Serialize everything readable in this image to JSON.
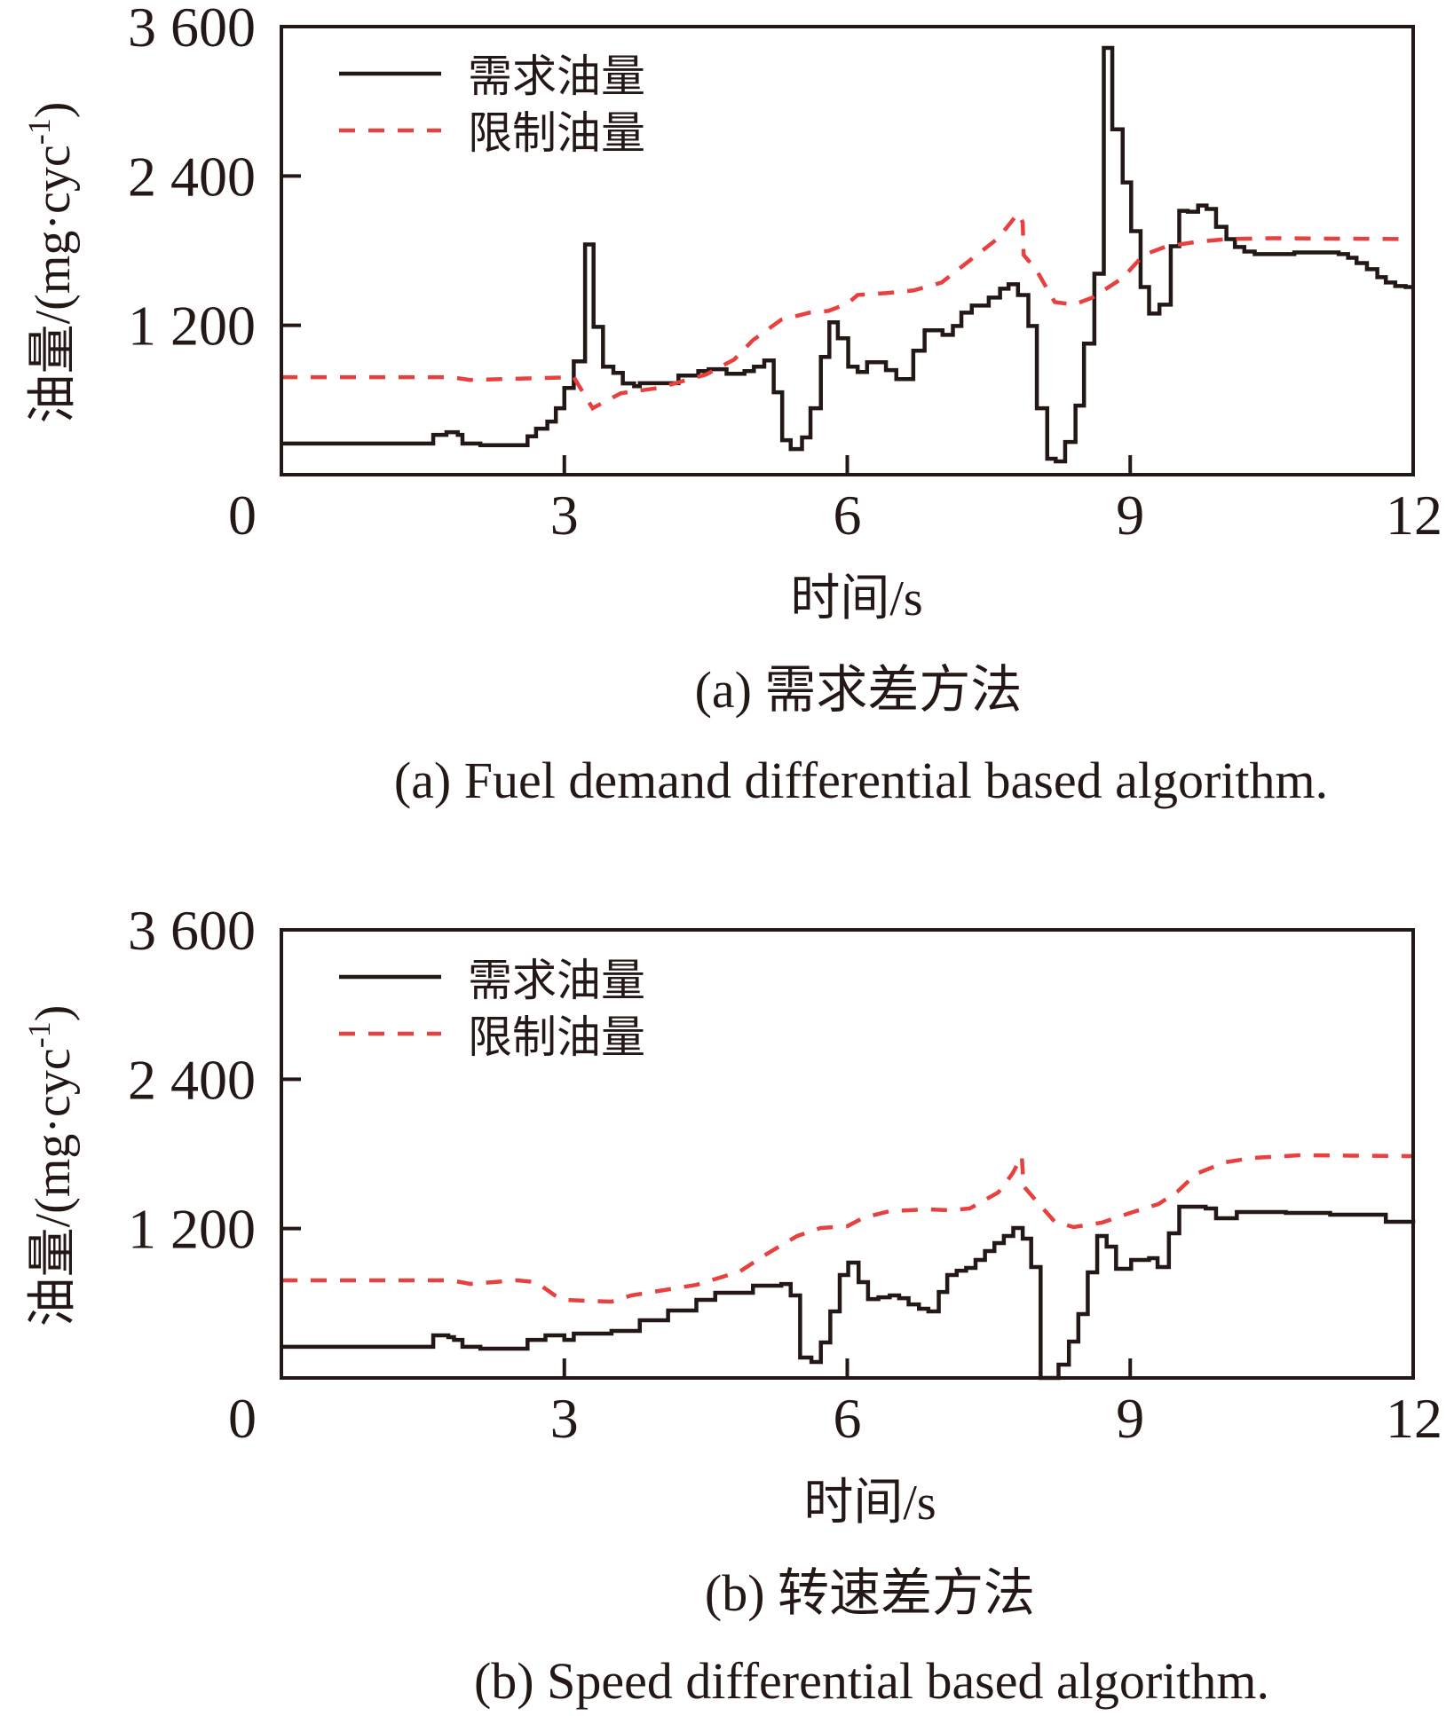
{
  "chart_data": [
    {
      "type": "line",
      "panel": "a",
      "ylabel": "油量/(mg·cyc⁻¹)",
      "ylabel_main": "油量/(mg·cyc",
      "ylabel_sup": "-1",
      "ylabel_close": ")",
      "xlabel": "时间/s",
      "caption_cn": "(a) 需求差方法",
      "caption_en": "(a) Fuel demand differential based algorithm.",
      "xlim": [
        0,
        12
      ],
      "ylim": [
        0,
        3600
      ],
      "xticks": [
        0,
        3,
        6,
        9,
        12
      ],
      "xtick_labels": [
        "0",
        "3",
        "6",
        "9",
        "12"
      ],
      "yticks": [
        0,
        1200,
        2400,
        3600
      ],
      "ytick_labels": [
        "0",
        "1 200",
        "2 400",
        "3 600"
      ],
      "grid": false,
      "legend_position": "top-left",
      "series": [
        {
          "name": "需求油量",
          "style": "solid",
          "color": "#231815",
          "interpolation": "step",
          "points": [
            [
              0,
              250
            ],
            [
              1.61,
              320
            ],
            [
              1.75,
              341
            ],
            [
              1.87,
              320
            ],
            [
              1.92,
              250
            ],
            [
              2.11,
              237
            ],
            [
              2.61,
              308
            ],
            [
              2.7,
              370
            ],
            [
              2.82,
              427
            ],
            [
              2.91,
              534
            ],
            [
              3.0,
              697
            ],
            [
              3.1,
              911
            ],
            [
              3.22,
              1850
            ],
            [
              3.31,
              1188
            ],
            [
              3.41,
              868
            ],
            [
              3.52,
              818
            ],
            [
              3.62,
              733
            ],
            [
              3.74,
              711
            ],
            [
              3.8,
              735
            ],
            [
              4.21,
              797
            ],
            [
              4.42,
              832
            ],
            [
              4.53,
              847
            ],
            [
              4.72,
              811
            ],
            [
              4.91,
              832
            ],
            [
              5.01,
              868
            ],
            [
              5.12,
              918
            ],
            [
              5.22,
              662
            ],
            [
              5.31,
              277
            ],
            [
              5.4,
              206
            ],
            [
              5.52,
              299
            ],
            [
              5.61,
              534
            ],
            [
              5.72,
              946
            ],
            [
              5.81,
              1224
            ],
            [
              5.9,
              1096
            ],
            [
              6.01,
              868
            ],
            [
              6.11,
              825
            ],
            [
              6.21,
              904
            ],
            [
              6.41,
              840
            ],
            [
              6.52,
              768
            ],
            [
              6.7,
              996
            ],
            [
              6.82,
              1160
            ],
            [
              7.01,
              1124
            ],
            [
              7.12,
              1195
            ],
            [
              7.21,
              1302
            ],
            [
              7.32,
              1359
            ],
            [
              7.5,
              1423
            ],
            [
              7.62,
              1494
            ],
            [
              7.71,
              1530
            ],
            [
              7.81,
              1444
            ],
            [
              7.92,
              1195
            ],
            [
              8.01,
              534
            ],
            [
              8.12,
              128
            ],
            [
              8.21,
              107
            ],
            [
              8.31,
              263
            ],
            [
              8.42,
              555
            ],
            [
              8.51,
              1053
            ],
            [
              8.62,
              1615
            ],
            [
              8.72,
              3429
            ],
            [
              8.81,
              2775
            ],
            [
              8.92,
              2348
            ],
            [
              9.01,
              1957
            ],
            [
              9.11,
              1508
            ],
            [
              9.2,
              1295
            ],
            [
              9.31,
              1366
            ],
            [
              9.43,
              1836
            ],
            [
              9.52,
              2120
            ],
            [
              9.61,
              2113
            ],
            [
              9.72,
              2163
            ],
            [
              9.81,
              2135
            ],
            [
              9.91,
              1992
            ],
            [
              10.02,
              1893
            ],
            [
              10.11,
              1829
            ],
            [
              10.21,
              1793
            ],
            [
              10.32,
              1772
            ],
            [
              10.74,
              1786
            ],
            [
              11.21,
              1772
            ],
            [
              11.31,
              1743
            ],
            [
              11.4,
              1700
            ],
            [
              11.51,
              1651
            ],
            [
              11.62,
              1587
            ],
            [
              11.71,
              1544
            ],
            [
              11.81,
              1516
            ],
            [
              11.92,
              1508
            ],
            [
              12.0,
              1508
            ]
          ]
        },
        {
          "name": "限制油量",
          "style": "dashed",
          "color": "#e8403f",
          "interpolation": "linear",
          "points": [
            [
              0,
              783
            ],
            [
              1.8,
              783
            ],
            [
              2.0,
              761
            ],
            [
              2.7,
              775
            ],
            [
              3.1,
              783
            ],
            [
              3.3,
              534
            ],
            [
              3.6,
              655
            ],
            [
              4.0,
              697
            ],
            [
              4.5,
              804
            ],
            [
              4.8,
              925
            ],
            [
              5.0,
              1081
            ],
            [
              5.3,
              1245
            ],
            [
              5.6,
              1302
            ],
            [
              5.8,
              1316
            ],
            [
              6.0,
              1373
            ],
            [
              6.11,
              1444
            ],
            [
              6.41,
              1459
            ],
            [
              6.7,
              1480
            ],
            [
              7.0,
              1544
            ],
            [
              7.3,
              1722
            ],
            [
              7.6,
              1900
            ],
            [
              7.81,
              2099
            ],
            [
              7.86,
              2028
            ],
            [
              7.87,
              1765
            ],
            [
              8.0,
              1651
            ],
            [
              8.2,
              1387
            ],
            [
              8.4,
              1366
            ],
            [
              8.6,
              1423
            ],
            [
              8.92,
              1580
            ],
            [
              9.14,
              1765
            ],
            [
              9.39,
              1836
            ],
            [
              9.71,
              1871
            ],
            [
              10.02,
              1893
            ],
            [
              10.49,
              1900
            ],
            [
              12.0,
              1893
            ]
          ]
        }
      ]
    },
    {
      "type": "line",
      "panel": "b",
      "ylabel": "油量/(mg·cyc⁻¹)",
      "ylabel_main": "油量/(mg·cyc",
      "ylabel_sup": "-1",
      "ylabel_close": ")",
      "xlabel": "时间/s",
      "caption_cn": "(b) 转速差方法",
      "caption_en": "(b) Speed differential based algorithm.",
      "xlim": [
        0,
        12
      ],
      "ylim": [
        0,
        3600
      ],
      "xticks": [
        0,
        3,
        6,
        9,
        12
      ],
      "xtick_labels": [
        "0",
        "3",
        "6",
        "9",
        "12"
      ],
      "yticks": [
        0,
        1200,
        2400,
        3600
      ],
      "ytick_labels": [
        "0",
        "1 200",
        "2 400",
        "3 600"
      ],
      "grid": false,
      "legend_position": "top-left",
      "series": [
        {
          "name": "需求油量",
          "style": "solid",
          "color": "#231815",
          "interpolation": "step",
          "points": [
            [
              0,
              250
            ],
            [
              1.61,
              342
            ],
            [
              1.77,
              328
            ],
            [
              1.83,
              306
            ],
            [
              1.92,
              250
            ],
            [
              2.11,
              235
            ],
            [
              2.61,
              306
            ],
            [
              2.8,
              342
            ],
            [
              3.0,
              306
            ],
            [
              3.1,
              356
            ],
            [
              3.5,
              378
            ],
            [
              3.8,
              463
            ],
            [
              4.1,
              542
            ],
            [
              4.4,
              627
            ],
            [
              4.6,
              684
            ],
            [
              5.0,
              741
            ],
            [
              5.3,
              755
            ],
            [
              5.4,
              663
            ],
            [
              5.5,
              164
            ],
            [
              5.62,
              128
            ],
            [
              5.72,
              285
            ],
            [
              5.82,
              535
            ],
            [
              5.92,
              827
            ],
            [
              6.01,
              927
            ],
            [
              6.12,
              770
            ],
            [
              6.22,
              634
            ],
            [
              6.33,
              648
            ],
            [
              6.45,
              663
            ],
            [
              6.55,
              641
            ],
            [
              6.65,
              591
            ],
            [
              6.76,
              556
            ],
            [
              6.86,
              535
            ],
            [
              6.97,
              691
            ],
            [
              7.06,
              827
            ],
            [
              7.16,
              862
            ],
            [
              7.26,
              884
            ],
            [
              7.36,
              948
            ],
            [
              7.46,
              1019
            ],
            [
              7.56,
              1084
            ],
            [
              7.66,
              1141
            ],
            [
              7.76,
              1205
            ],
            [
              7.86,
              1119
            ],
            [
              7.95,
              891
            ],
            [
              8.05,
              0
            ],
            [
              8.24,
              107
            ],
            [
              8.35,
              292
            ],
            [
              8.45,
              513
            ],
            [
              8.55,
              848
            ],
            [
              8.65,
              1141
            ],
            [
              8.75,
              1055
            ],
            [
              8.85,
              877
            ],
            [
              9.01,
              948
            ],
            [
              9.2,
              962
            ],
            [
              9.29,
              891
            ],
            [
              9.41,
              1162
            ],
            [
              9.52,
              1376
            ],
            [
              9.8,
              1362
            ],
            [
              9.91,
              1283
            ],
            [
              10.13,
              1333
            ],
            [
              10.65,
              1326
            ],
            [
              11.12,
              1312
            ],
            [
              11.71,
              1255
            ],
            [
              12.0,
              1240
            ]
          ]
        },
        {
          "name": "限制油量",
          "style": "dashed",
          "color": "#e8403f",
          "interpolation": "linear",
          "points": [
            [
              0,
              784
            ],
            [
              1.8,
              784
            ],
            [
              2.0,
              756
            ],
            [
              2.5,
              784
            ],
            [
              2.7,
              770
            ],
            [
              2.9,
              663
            ],
            [
              3.0,
              627
            ],
            [
              3.5,
              613
            ],
            [
              3.71,
              663
            ],
            [
              4.4,
              748
            ],
            [
              4.86,
              855
            ],
            [
              5.15,
              998
            ],
            [
              5.47,
              1141
            ],
            [
              5.72,
              1205
            ],
            [
              6.0,
              1219
            ],
            [
              6.18,
              1290
            ],
            [
              6.45,
              1340
            ],
            [
              6.85,
              1355
            ],
            [
              7.1,
              1347
            ],
            [
              7.3,
              1362
            ],
            [
              7.45,
              1426
            ],
            [
              7.6,
              1490
            ],
            [
              7.75,
              1640
            ],
            [
              7.85,
              1782
            ],
            [
              7.87,
              1540
            ],
            [
              8.0,
              1426
            ],
            [
              8.2,
              1255
            ],
            [
              8.4,
              1212
            ],
            [
              8.7,
              1248
            ],
            [
              9.0,
              1326
            ],
            [
              9.3,
              1397
            ],
            [
              9.5,
              1497
            ],
            [
              9.7,
              1640
            ],
            [
              10.0,
              1732
            ],
            [
              10.3,
              1768
            ],
            [
              10.8,
              1789
            ],
            [
              12.0,
              1782
            ]
          ]
        }
      ]
    }
  ]
}
